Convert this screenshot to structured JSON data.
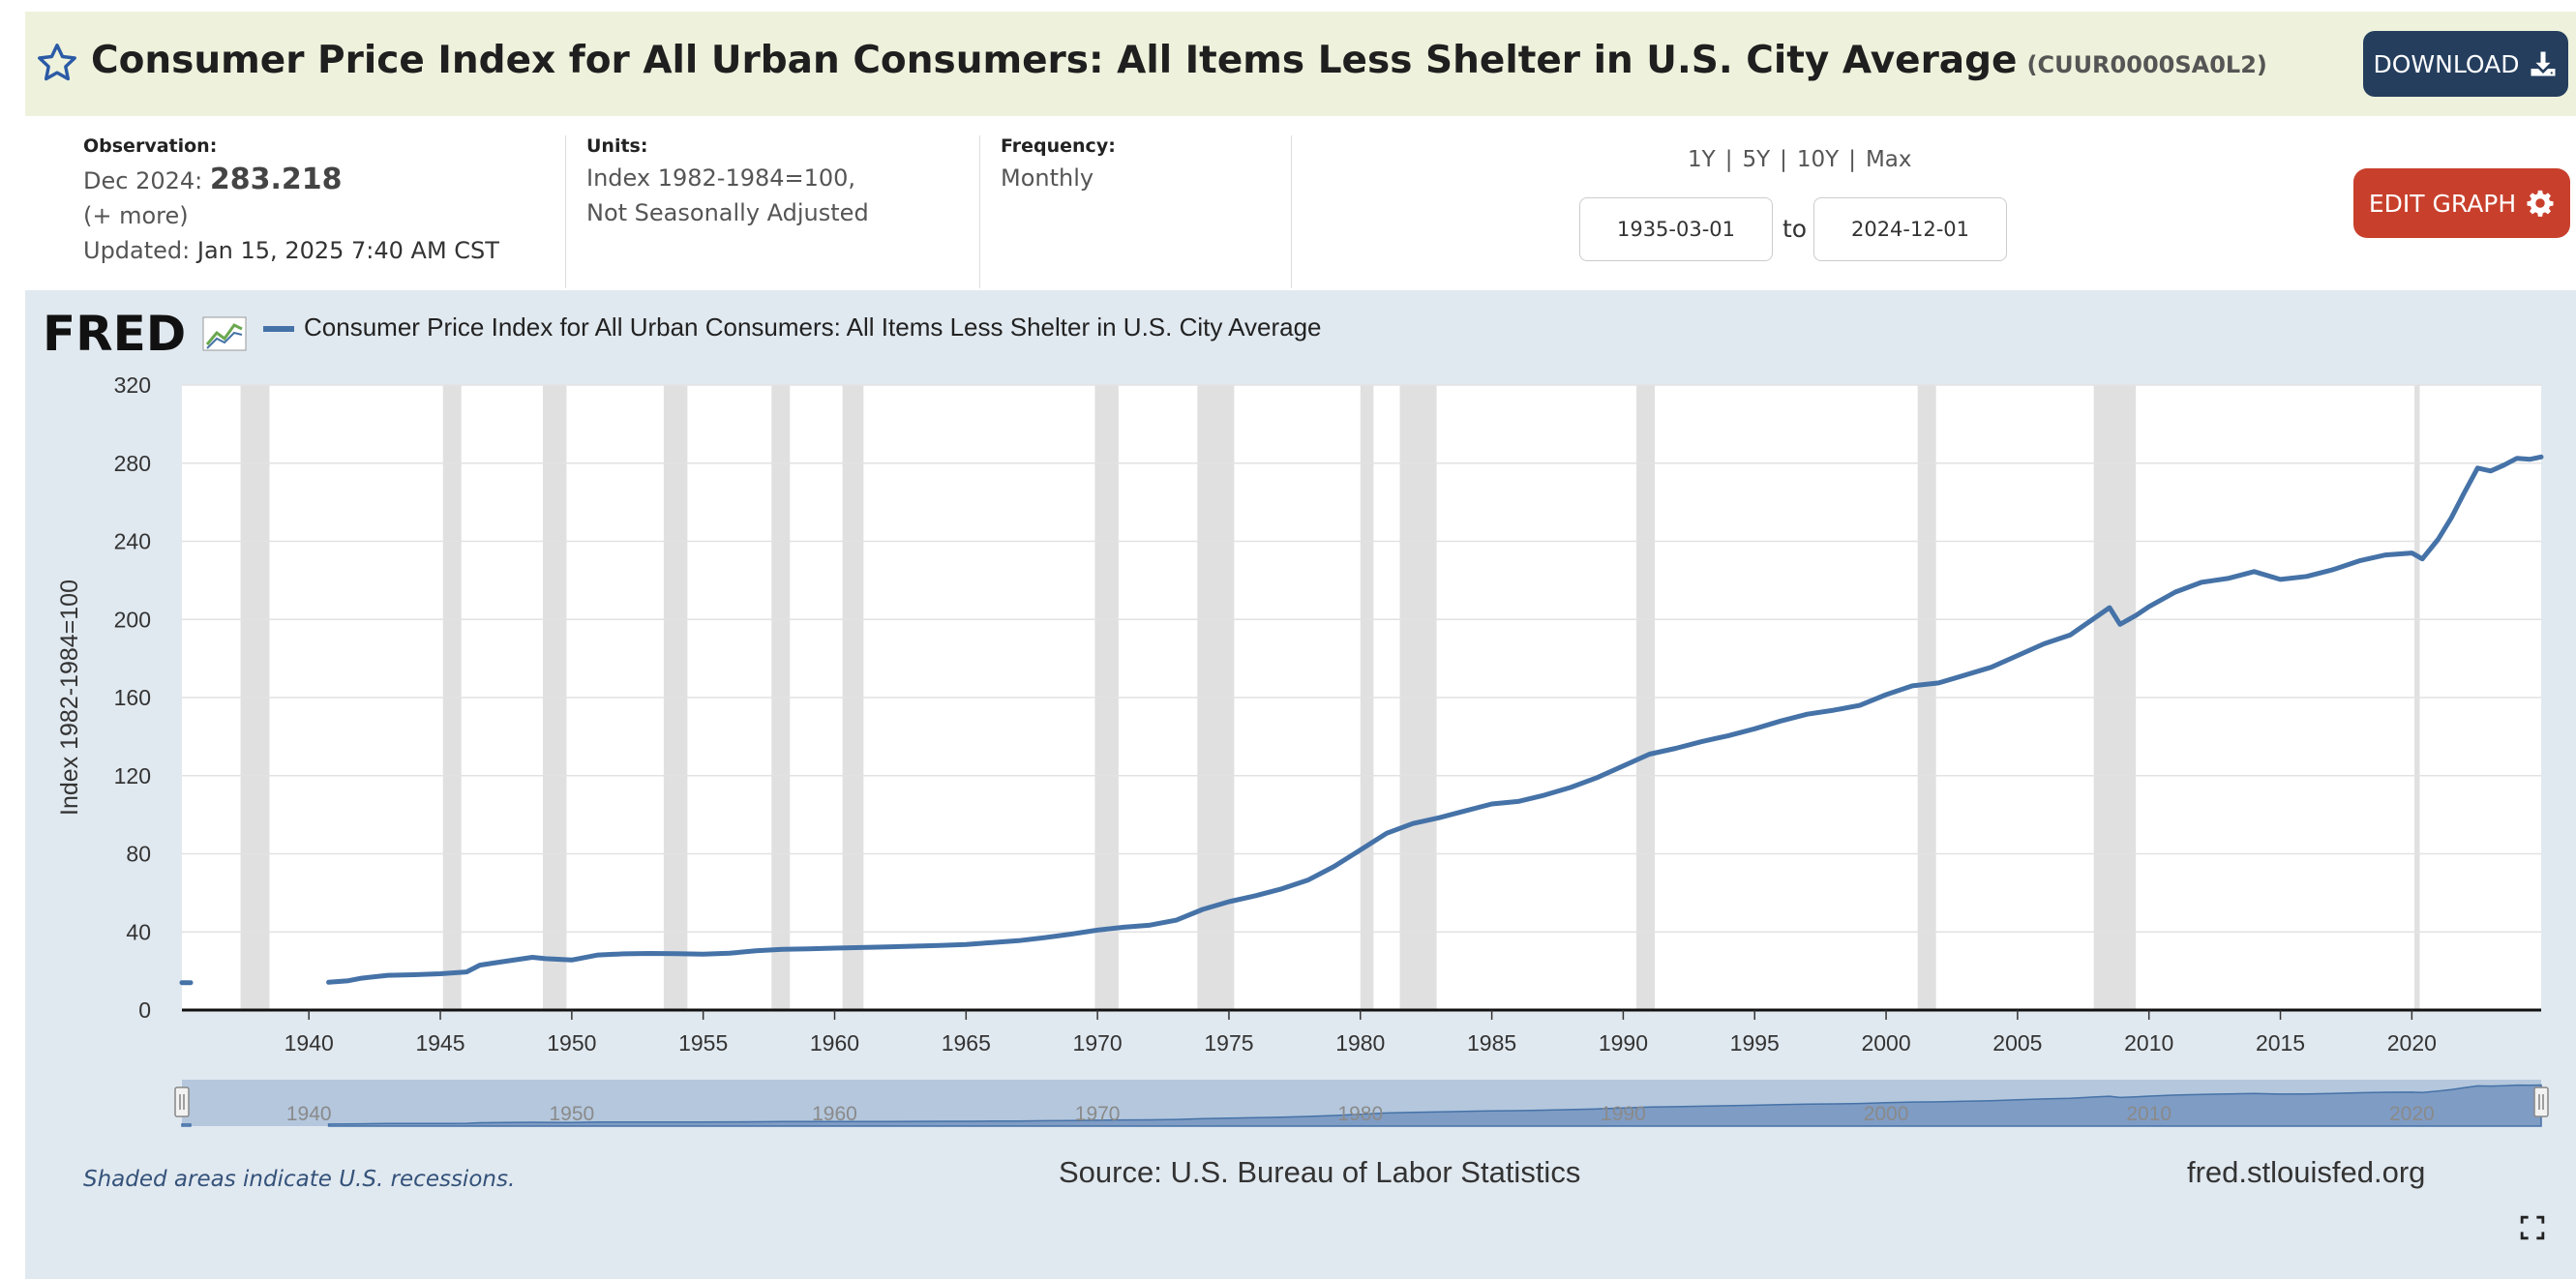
{
  "header": {
    "title": "Consumer Price Index for All Urban Consumers: All Items Less Shelter in U.S. City Average",
    "series_id": "(CUUR0000SA0L2)",
    "download_label": "DOWNLOAD"
  },
  "meta": {
    "observation_label": "Observation:",
    "observation_date": "Dec 2024:",
    "observation_value": "283.218",
    "more_link": "(+ more)",
    "updated_label": "Updated:",
    "updated_value": "Jan 15, 2025 7:40 AM CST",
    "units_label": "Units:",
    "units_line1": "Index 1982-1984=100,",
    "units_line2": "Not Seasonally Adjusted",
    "frequency_label": "Frequency:",
    "frequency_value": "Monthly"
  },
  "controls": {
    "range_1y": "1Y",
    "range_5y": "5Y",
    "range_10y": "10Y",
    "range_max": "Max",
    "separator": "|",
    "start_date": "1935-03-01",
    "to_label": "to",
    "end_date": "2024-12-01",
    "edit_graph_label": "EDIT GRAPH"
  },
  "footer": {
    "recession_note": "Shaded areas indicate U.S. recessions.",
    "source": "Source: U.S. Bureau of Labor Statistics",
    "site": "fred.stlouisfed.org"
  },
  "logo_text": "FRED",
  "colors": {
    "series": "#4572a7",
    "recession": "#e0e0e0",
    "panel": "#e1e9f0",
    "title_bar": "#eef2dc",
    "download_button": "#253e5e",
    "edit_button": "#c8402c"
  },
  "chart_data": {
    "type": "line",
    "title": "",
    "xlabel": "",
    "ylabel": "Index 1982-1984=100",
    "legend": "Consumer Price Index for All Urban Consumers: All Items Less Shelter in U.S. City Average",
    "legend_position": "top-left",
    "grid": true,
    "xlim": [
      1935.17,
      2024.92
    ],
    "ylim": [
      0,
      320
    ],
    "yticks": [
      0,
      40,
      80,
      120,
      160,
      200,
      240,
      280,
      320
    ],
    "xticks": [
      1940,
      1945,
      1950,
      1955,
      1960,
      1965,
      1970,
      1975,
      1980,
      1985,
      1990,
      1995,
      2000,
      2005,
      2010,
      2015,
      2020
    ],
    "navigator_ticks": [
      1940,
      1950,
      1960,
      1970,
      1980,
      1990,
      2000,
      2010,
      2020
    ],
    "recessions": [
      [
        1937.4,
        1938.5
      ],
      [
        1945.1,
        1945.8
      ],
      [
        1948.9,
        1949.8
      ],
      [
        1953.5,
        1954.4
      ],
      [
        1957.6,
        1958.3
      ],
      [
        1960.3,
        1961.1
      ],
      [
        1969.9,
        1970.8
      ],
      [
        1973.8,
        1975.2
      ],
      [
        1980.0,
        1980.5
      ],
      [
        1981.5,
        1982.9
      ],
      [
        1990.5,
        1991.2
      ],
      [
        2001.2,
        2001.9
      ],
      [
        2007.9,
        2009.5
      ],
      [
        2020.1,
        2020.3
      ]
    ],
    "series": [
      {
        "name": "Consumer Price Index for All Urban Consumers: All Items Less Shelter in U.S. City Average",
        "segments": [
          [
            [
              1935.17,
              14.0
            ],
            [
              1935.5,
              14.0
            ]
          ],
          [
            [
              1940.75,
              14.2
            ],
            [
              1941.5,
              15.0
            ],
            [
              1942,
              16.3
            ],
            [
              1943,
              17.8
            ],
            [
              1944,
              18.1
            ],
            [
              1945,
              18.6
            ],
            [
              1946,
              19.5
            ],
            [
              1946.5,
              23.0
            ],
            [
              1947,
              24.0
            ],
            [
              1948,
              26.0
            ],
            [
              1948.5,
              27.0
            ],
            [
              1949,
              26.3
            ],
            [
              1950,
              25.6
            ],
            [
              1951,
              28.2
            ],
            [
              1952,
              28.8
            ],
            [
              1953,
              29.0
            ],
            [
              1954,
              28.9
            ],
            [
              1955,
              28.6
            ],
            [
              1956,
              29.1
            ],
            [
              1957,
              30.3
            ],
            [
              1958,
              31.1
            ],
            [
              1959,
              31.3
            ],
            [
              1960,
              31.7
            ],
            [
              1961,
              32.0
            ],
            [
              1962,
              32.3
            ],
            [
              1963,
              32.7
            ],
            [
              1964,
              33.1
            ],
            [
              1965,
              33.6
            ],
            [
              1966,
              34.6
            ],
            [
              1967,
              35.5
            ],
            [
              1968,
              37.1
            ],
            [
              1969,
              38.9
            ],
            [
              1970,
              40.9
            ],
            [
              1971,
              42.4
            ],
            [
              1972,
              43.5
            ],
            [
              1973,
              46.0
            ],
            [
              1974,
              51.5
            ],
            [
              1975,
              55.5
            ],
            [
              1976,
              58.5
            ],
            [
              1977,
              62.0
            ],
            [
              1978,
              66.5
            ],
            [
              1979,
              73.5
            ],
            [
              1980,
              82.0
            ],
            [
              1981,
              90.5
            ],
            [
              1982,
              95.5
            ],
            [
              1983,
              98.5
            ],
            [
              1984,
              102.0
            ],
            [
              1985,
              105.5
            ],
            [
              1986,
              106.8
            ],
            [
              1987,
              110.0
            ],
            [
              1988,
              114.0
            ],
            [
              1989,
              119.0
            ],
            [
              1990,
              125.0
            ],
            [
              1991,
              131.0
            ],
            [
              1992,
              134.0
            ],
            [
              1993,
              137.5
            ],
            [
              1994,
              140.5
            ],
            [
              1995,
              144.0
            ],
            [
              1996,
              148.0
            ],
            [
              1997,
              151.5
            ],
            [
              1998,
              153.5
            ],
            [
              1999,
              156.0
            ],
            [
              2000,
              161.5
            ],
            [
              2001,
              166.0
            ],
            [
              2002,
              167.5
            ],
            [
              2003,
              171.5
            ],
            [
              2004,
              175.5
            ],
            [
              2005,
              181.5
            ],
            [
              2006,
              187.5
            ],
            [
              2007,
              192.0
            ],
            [
              2008.5,
              206.0
            ],
            [
              2008.9,
              197.5
            ],
            [
              2009.5,
              202.0
            ],
            [
              2010,
              206.5
            ],
            [
              2011,
              214.0
            ],
            [
              2012,
              219.0
            ],
            [
              2013,
              221.0
            ],
            [
              2014,
              224.5
            ],
            [
              2015,
              220.5
            ],
            [
              2016,
              222.0
            ],
            [
              2017,
              225.5
            ],
            [
              2018,
              230.0
            ],
            [
              2019,
              233.0
            ],
            [
              2020,
              234.0
            ],
            [
              2020.4,
              231.0
            ],
            [
              2021,
              241.0
            ],
            [
              2021.5,
              252.0
            ],
            [
              2022,
              265.0
            ],
            [
              2022.5,
              277.5
            ],
            [
              2023,
              276.0
            ],
            [
              2023.5,
              279.0
            ],
            [
              2024,
              282.5
            ],
            [
              2024.5,
              282.0
            ],
            [
              2024.92,
              283.218
            ]
          ]
        ]
      }
    ]
  }
}
